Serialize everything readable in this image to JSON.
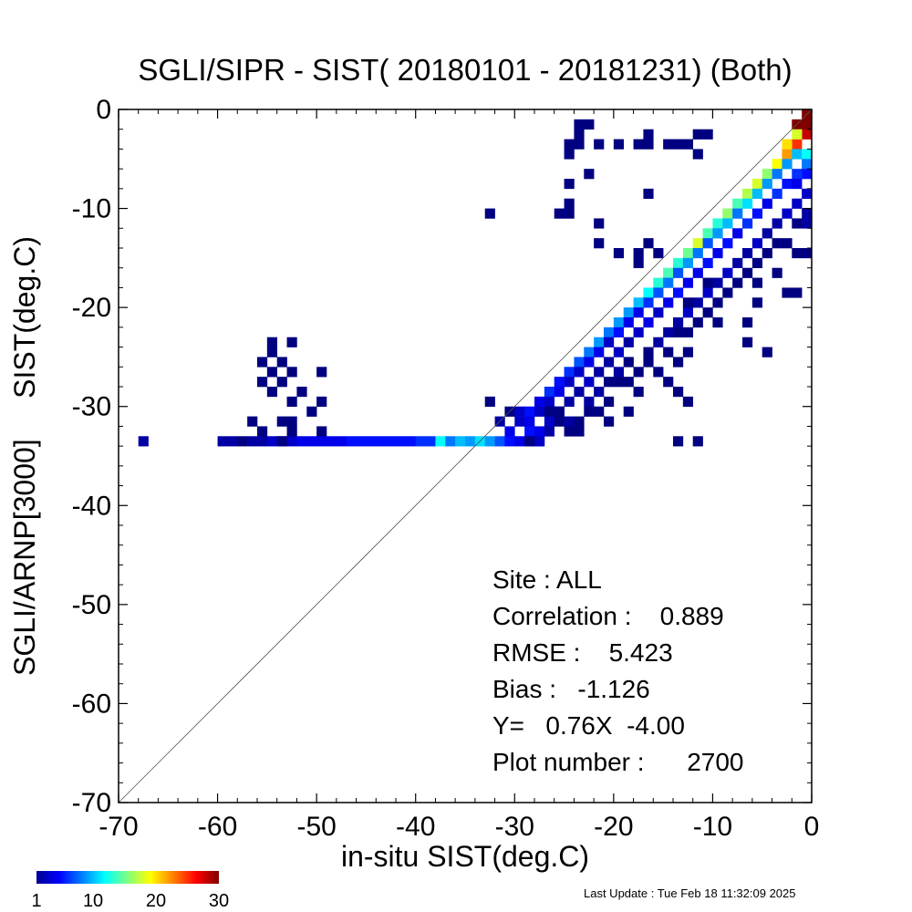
{
  "chart_data": {
    "type": "heatmap",
    "title": "SGLI/SIPR - SIST( 20180101 - 20181231) (Both)",
    "xlabel": "in-situ SIST(deg.C)",
    "ylabel": "SGLI/ARNP[3000]     SIST(deg.C)",
    "xlim": [
      -70,
      0
    ],
    "ylim": [
      -70,
      0
    ],
    "xticks": [
      "-70",
      "-60",
      "-50",
      "-40",
      "-30",
      "-20",
      "-10",
      "0"
    ],
    "yticks": [
      "-70",
      "-60",
      "-50",
      "-40",
      "-30",
      "-20",
      "-10",
      "0"
    ],
    "bin_size": 1,
    "one_to_one_line": true,
    "colorbar": {
      "min": 1,
      "max": 30,
      "ticks": [
        "1",
        "10",
        "20",
        "30"
      ],
      "colormap": "jet"
    },
    "cells": [
      [
        -67.5,
        -33.5,
        2
      ],
      [
        -59.5,
        -33.5,
        2
      ],
      [
        -58.5,
        -33.5,
        2
      ],
      [
        -57.5,
        -33.5,
        1
      ],
      [
        -56.5,
        -33.5,
        2
      ],
      [
        -55.5,
        -33.5,
        2
      ],
      [
        -54.5,
        -33.5,
        3
      ],
      [
        -53.5,
        -33.5,
        4
      ],
      [
        -52.5,
        -33.5,
        3
      ],
      [
        -51.5,
        -33.5,
        4
      ],
      [
        -50.5,
        -33.5,
        4
      ],
      [
        -49.5,
        -33.5,
        4
      ],
      [
        -48.5,
        -33.5,
        4
      ],
      [
        -47.5,
        -33.5,
        4
      ],
      [
        -46.5,
        -33.5,
        5
      ],
      [
        -45.5,
        -33.5,
        5
      ],
      [
        -44.5,
        -33.5,
        5
      ],
      [
        -43.5,
        -33.5,
        5
      ],
      [
        -42.5,
        -33.5,
        5
      ],
      [
        -41.5,
        -33.5,
        5
      ],
      [
        -40.5,
        -33.5,
        5
      ],
      [
        -39.5,
        -33.5,
        6
      ],
      [
        -38.5,
        -33.5,
        6
      ],
      [
        -37.5,
        -33.5,
        12
      ],
      [
        -36.5,
        -33.5,
        8
      ],
      [
        -35.5,
        -33.5,
        10
      ],
      [
        -34.5,
        -33.5,
        9
      ],
      [
        -33.5,
        -33.5,
        11
      ],
      [
        -32.5,
        -33.5,
        9
      ],
      [
        -31.5,
        -33.5,
        7
      ],
      [
        -30.5,
        -33.5,
        5
      ],
      [
        -29.5,
        -33.5,
        4
      ],
      [
        -28.5,
        -33.5,
        3
      ],
      [
        -27.5,
        -33.5,
        2
      ],
      [
        -13.5,
        -33.5,
        1
      ],
      [
        -11.5,
        -33.5,
        1
      ],
      [
        -54.5,
        -23.5,
        1
      ],
      [
        -52.5,
        -23.5,
        1
      ],
      [
        -54.5,
        -24.5,
        1
      ],
      [
        -53.5,
        -25.5,
        1
      ],
      [
        -55.5,
        -25.5,
        1
      ],
      [
        -54.5,
        -26.5,
        1
      ],
      [
        -52.5,
        -26.5,
        1
      ],
      [
        -55.5,
        -27.5,
        1
      ],
      [
        -53.5,
        -27.5,
        1
      ],
      [
        -49.5,
        -26.5,
        1
      ],
      [
        -54.5,
        -28.5,
        1
      ],
      [
        -51.5,
        -28.5,
        1
      ],
      [
        -49.5,
        -29.5,
        1
      ],
      [
        -52.5,
        -29.5,
        1
      ],
      [
        -50.5,
        -30.5,
        1
      ],
      [
        -56.5,
        -31.5,
        1
      ],
      [
        -53.5,
        -31.5,
        1
      ],
      [
        -52.5,
        -31.5,
        1
      ],
      [
        -55.5,
        -32.5,
        1
      ],
      [
        -52.5,
        -32.5,
        1
      ],
      [
        -49.5,
        -32.5,
        1
      ],
      [
        -53.5,
        -33.5,
        1
      ],
      [
        -32.5,
        -10.5,
        1
      ],
      [
        -32.5,
        -29.5,
        1
      ],
      [
        -30.5,
        -30.5,
        1
      ],
      [
        -31.5,
        -31.5,
        2
      ],
      [
        -29.5,
        -31.5,
        3
      ],
      [
        -30.5,
        -32.5,
        4
      ],
      [
        -28.5,
        -30.5,
        5
      ],
      [
        -27.5,
        -29.5,
        4
      ],
      [
        -26.5,
        -28.5,
        6
      ],
      [
        -25.5,
        -27.5,
        5
      ],
      [
        -24.5,
        -26.5,
        6
      ],
      [
        -23.5,
        -25.5,
        7
      ],
      [
        -22.5,
        -24.5,
        8
      ],
      [
        -21.5,
        -23.5,
        9
      ],
      [
        -20.5,
        -22.5,
        8
      ],
      [
        -19.5,
        -21.5,
        9
      ],
      [
        -18.5,
        -20.5,
        9
      ],
      [
        -17.5,
        -19.5,
        10
      ],
      [
        -16.5,
        -18.5,
        12
      ],
      [
        -15.5,
        -17.5,
        13
      ],
      [
        -14.5,
        -16.5,
        14
      ],
      [
        -13.5,
        -15.5,
        13
      ],
      [
        -12.5,
        -14.5,
        15
      ],
      [
        -11.5,
        -13.5,
        18
      ],
      [
        -10.5,
        -12.5,
        14
      ],
      [
        -9.5,
        -11.5,
        13
      ],
      [
        -8.5,
        -10.5,
        16
      ],
      [
        -7.5,
        -9.5,
        14
      ],
      [
        -6.5,
        -8.5,
        17
      ],
      [
        -5.5,
        -7.5,
        18
      ],
      [
        -4.5,
        -6.5,
        16
      ],
      [
        -3.5,
        -5.5,
        19
      ],
      [
        -2.5,
        -4.5,
        22
      ],
      [
        -1.5,
        -3.5,
        25
      ],
      [
        -0.5,
        -2.5,
        28
      ],
      [
        -0.5,
        -1.5,
        30
      ],
      [
        -1.5,
        -1.5,
        30
      ],
      [
        -0.5,
        -0.5,
        30
      ],
      [
        -2.5,
        -3.5,
        20
      ],
      [
        -1.5,
        -2.5,
        18
      ],
      [
        -29.5,
        -30.5,
        3
      ],
      [
        -28.5,
        -31.5,
        4
      ],
      [
        -27.5,
        -30.5,
        3
      ],
      [
        -26.5,
        -29.5,
        3
      ],
      [
        -25.5,
        -28.5,
        4
      ],
      [
        -24.5,
        -27.5,
        3
      ],
      [
        -23.5,
        -26.5,
        3
      ],
      [
        -22.5,
        -25.5,
        4
      ],
      [
        -21.5,
        -24.5,
        4
      ],
      [
        -20.5,
        -23.5,
        3
      ],
      [
        -19.5,
        -22.5,
        5
      ],
      [
        -18.5,
        -21.5,
        4
      ],
      [
        -17.5,
        -20.5,
        4
      ],
      [
        -16.5,
        -19.5,
        6
      ],
      [
        -15.5,
        -18.5,
        7
      ],
      [
        -14.5,
        -17.5,
        8
      ],
      [
        -13.5,
        -16.5,
        7
      ],
      [
        -12.5,
        -15.5,
        9
      ],
      [
        -11.5,
        -14.5,
        8
      ],
      [
        -10.5,
        -13.5,
        7
      ],
      [
        -9.5,
        -12.5,
        9
      ],
      [
        -8.5,
        -11.5,
        10
      ],
      [
        -7.5,
        -10.5,
        8
      ],
      [
        -6.5,
        -9.5,
        11
      ],
      [
        -5.5,
        -8.5,
        10
      ],
      [
        -4.5,
        -7.5,
        9
      ],
      [
        -3.5,
        -6.5,
        8
      ],
      [
        -2.5,
        -5.5,
        9
      ],
      [
        -1.5,
        -4.5,
        10
      ],
      [
        -0.5,
        -4.5,
        12
      ],
      [
        -0.5,
        -5.5,
        8
      ],
      [
        -0.5,
        -6.5,
        5
      ],
      [
        -28.5,
        -32.5,
        5
      ],
      [
        -27.5,
        -32.5,
        4
      ],
      [
        -26.5,
        -31.5,
        3
      ],
      [
        -25.5,
        -30.5,
        3
      ],
      [
        -24.5,
        -29.5,
        2
      ],
      [
        -23.5,
        -28.5,
        2
      ],
      [
        -22.5,
        -27.5,
        3
      ],
      [
        -21.5,
        -26.5,
        2
      ],
      [
        -20.5,
        -25.5,
        2
      ],
      [
        -19.5,
        -24.5,
        3
      ],
      [
        -18.5,
        -23.5,
        2
      ],
      [
        -17.5,
        -22.5,
        3
      ],
      [
        -16.5,
        -21.5,
        4
      ],
      [
        -15.5,
        -20.5,
        3
      ],
      [
        -14.5,
        -19.5,
        4
      ],
      [
        -13.5,
        -18.5,
        5
      ],
      [
        -12.5,
        -17.5,
        4
      ],
      [
        -11.5,
        -16.5,
        4
      ],
      [
        -10.5,
        -15.5,
        5
      ],
      [
        -9.5,
        -14.5,
        4
      ],
      [
        -8.5,
        -13.5,
        5
      ],
      [
        -7.5,
        -12.5,
        4
      ],
      [
        -6.5,
        -11.5,
        6
      ],
      [
        -5.5,
        -10.5,
        5
      ],
      [
        -4.5,
        -9.5,
        4
      ],
      [
        -3.5,
        -8.5,
        6
      ],
      [
        -2.5,
        -7.5,
        5
      ],
      [
        -1.5,
        -6.5,
        6
      ],
      [
        -1.5,
        -7.5,
        4
      ],
      [
        -0.5,
        -8.5,
        3
      ],
      [
        -27.5,
        -33.5,
        3
      ],
      [
        -26.5,
        -32.5,
        2
      ],
      [
        -24.5,
        -31.5,
        2
      ],
      [
        -22.5,
        -29.5,
        2
      ],
      [
        -21.5,
        -28.5,
        2
      ],
      [
        -20.5,
        -27.5,
        1
      ],
      [
        -19.5,
        -26.5,
        2
      ],
      [
        -18.5,
        -25.5,
        1
      ],
      [
        -16.5,
        -25.5,
        1
      ],
      [
        -15.5,
        -23.5,
        2
      ],
      [
        -14.5,
        -22.5,
        2
      ],
      [
        -13.5,
        -21.5,
        2
      ],
      [
        -12.5,
        -20.5,
        3
      ],
      [
        -11.5,
        -19.5,
        2
      ],
      [
        -10.5,
        -18.5,
        3
      ],
      [
        -9.5,
        -17.5,
        2
      ],
      [
        -8.5,
        -16.5,
        3
      ],
      [
        -7.5,
        -15.5,
        2
      ],
      [
        -6.5,
        -14.5,
        2
      ],
      [
        -5.5,
        -13.5,
        3
      ],
      [
        -4.5,
        -12.5,
        2
      ],
      [
        -3.5,
        -11.5,
        2
      ],
      [
        -2.5,
        -10.5,
        3
      ],
      [
        -1.5,
        -9.5,
        3
      ],
      [
        -0.5,
        -10.5,
        2
      ],
      [
        -0.5,
        -11.5,
        2
      ],
      [
        -1.5,
        -11.5,
        1
      ],
      [
        -22.5,
        -30.5,
        1
      ],
      [
        -23.5,
        -32.5,
        1
      ],
      [
        -21.5,
        -30.5,
        1
      ],
      [
        -19.5,
        -27.5,
        1
      ],
      [
        -18.5,
        -27.5,
        1
      ],
      [
        -17.5,
        -26.5,
        1
      ],
      [
        -16.5,
        -24.5,
        1
      ],
      [
        -14.5,
        -24.5,
        1
      ],
      [
        -13.5,
        -25.5,
        1
      ],
      [
        -12.5,
        -24.5,
        1
      ],
      [
        -13.5,
        -22.5,
        1
      ],
      [
        -12.5,
        -22.5,
        1
      ],
      [
        -11.5,
        -21.5,
        1
      ],
      [
        -10.5,
        -20.5,
        1
      ],
      [
        -9.5,
        -19.5,
        1
      ],
      [
        -8.5,
        -18.5,
        1
      ],
      [
        -7.5,
        -17.5,
        1
      ],
      [
        -6.5,
        -16.5,
        1
      ],
      [
        -5.5,
        -15.5,
        1
      ],
      [
        -4.5,
        -14.5,
        1
      ],
      [
        -3.5,
        -13.5,
        1
      ],
      [
        -2.5,
        -13.5,
        1
      ],
      [
        -1.5,
        -14.5,
        1
      ],
      [
        -0.5,
        -14.5,
        1
      ],
      [
        -5.5,
        -17.5,
        1
      ],
      [
        -3.5,
        -16.5,
        1
      ],
      [
        -2.5,
        -18.5,
        1
      ],
      [
        -5.5,
        -19.5,
        1
      ],
      [
        -1.5,
        -18.5,
        1
      ],
      [
        -10.5,
        -17.5,
        1
      ],
      [
        -12.5,
        -19.5,
        1
      ],
      [
        -9.5,
        -21.5,
        1
      ],
      [
        -6.5,
        -21.5,
        1
      ],
      [
        -4.5,
        -24.5,
        1
      ],
      [
        -6.5,
        -23.5,
        1
      ],
      [
        -13.5,
        -28.5,
        1
      ],
      [
        -14.5,
        -27.5,
        1
      ],
      [
        -15.5,
        -26.5,
        1
      ],
      [
        -12.5,
        -29.5,
        1
      ],
      [
        -17.5,
        -28.5,
        1
      ],
      [
        -20.5,
        -29.5,
        1
      ],
      [
        -18.5,
        -30.5,
        1
      ],
      [
        -20.5,
        -31.5,
        1
      ],
      [
        -24.5,
        -32.5,
        1
      ],
      [
        -25.5,
        -30.5,
        1
      ],
      [
        -26.5,
        -30.5,
        1
      ],
      [
        -25.5,
        -31.5,
        1
      ],
      [
        -23.5,
        -31.5,
        1
      ],
      [
        -28.5,
        -33.5,
        1
      ],
      [
        -23.5,
        -1.5,
        1
      ],
      [
        -23.5,
        -2.5,
        1
      ],
      [
        -22.5,
        -1.5,
        1
      ],
      [
        -24.5,
        -3.5,
        1
      ],
      [
        -23.5,
        -3.5,
        1
      ],
      [
        -21.5,
        -3.5,
        1
      ],
      [
        -19.5,
        -3.5,
        1
      ],
      [
        -16.5,
        -2.5,
        1
      ],
      [
        -17.5,
        -3.5,
        1
      ],
      [
        -16.5,
        -3.5,
        1
      ],
      [
        -14.5,
        -3.5,
        1
      ],
      [
        -13.5,
        -3.5,
        1
      ],
      [
        -12.5,
        -3.5,
        1
      ],
      [
        -11.5,
        -2.5,
        1
      ],
      [
        -10.5,
        -2.5,
        1
      ],
      [
        -11.5,
        -4.5,
        1
      ],
      [
        -24.5,
        -4.5,
        1
      ],
      [
        -22.5,
        -6.5,
        1
      ],
      [
        -24.5,
        -7.5,
        1
      ],
      [
        -24.5,
        -9.5,
        1
      ],
      [
        -16.5,
        -8.5,
        1
      ],
      [
        -24.5,
        -10.5,
        1
      ],
      [
        -25.5,
        -10.5,
        1
      ],
      [
        -21.5,
        -11.5,
        1
      ],
      [
        -21.5,
        -13.5,
        1
      ],
      [
        -19.5,
        -14.5,
        1
      ],
      [
        -17.5,
        -15.5,
        1
      ],
      [
        -16.5,
        -13.5,
        1
      ],
      [
        -17.5,
        -14.5,
        1
      ],
      [
        -15.5,
        -14.5,
        1
      ]
    ],
    "stats": {
      "site": "Site : ALL",
      "correlation": "Correlation :    0.889",
      "rmse": "RMSE :    5.423",
      "bias": "Bias :   -1.126",
      "fit": "Y=   0.76X  -4.00",
      "plot_number": "Plot number :      2700"
    }
  },
  "footer": {
    "last_update": "Last Update : Tue Feb 18 11:32:09 2025"
  }
}
